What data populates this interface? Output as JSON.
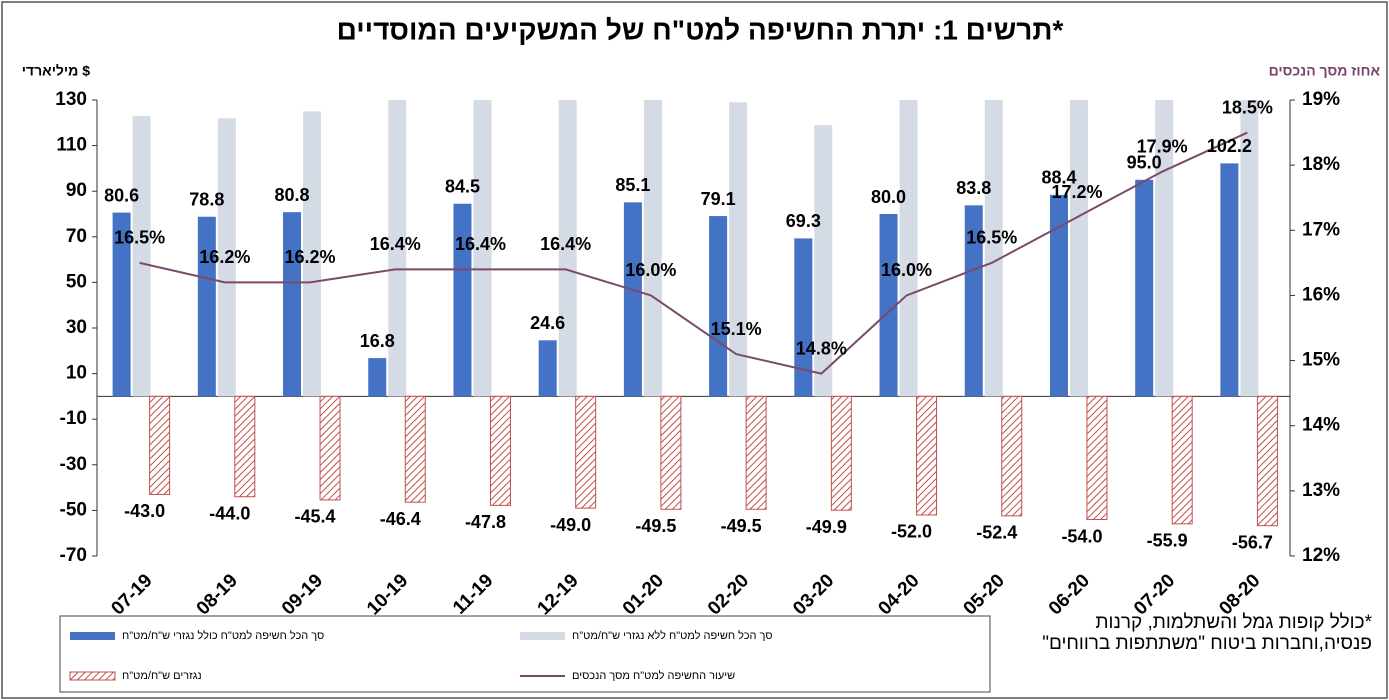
{
  "chart_data": {
    "type": "bar-line",
    "title": "תרשים 1: יתרת החשיפה למט\"ח של המשקיעים המוסדיים*",
    "y_label": "מיליארדי $",
    "y2_label": "אחוז מסך הנכסים",
    "footnote": "*כולל קופות גמל והשתלמות, קרנות פנסיה,וחברות ביטוח \"משתתפות ברווחים\"",
    "categories": [
      "07-19",
      "08-19",
      "09-19",
      "10-19",
      "11-19",
      "12-19",
      "01-20",
      "02-20",
      "03-20",
      "04-20",
      "05-20",
      "06-20",
      "07-20",
      "08-20"
    ],
    "ylim": [
      -70,
      130
    ],
    "yticks": [
      -70,
      -50,
      -30,
      -10,
      10,
      30,
      50,
      70,
      90,
      110,
      130
    ],
    "y2lim": [
      12,
      19
    ],
    "y2ticks": [
      {
        "value": 12,
        "label": "12%"
      },
      {
        "value": 13,
        "label": "13%"
      },
      {
        "value": 14,
        "label": "14%"
      },
      {
        "value": 15,
        "label": "15%"
      },
      {
        "value": 16,
        "label": "16%"
      },
      {
        "value": 17,
        "label": "17%"
      },
      {
        "value": 18,
        "label": "18%"
      },
      {
        "value": 19,
        "label": "19%"
      }
    ],
    "grid": false,
    "series": [
      {
        "name": "סך הכל חשיפה למט\"ח כולל נגזרי ש\"ח/מט\"ח",
        "kind": "bar",
        "color": "#4472c4",
        "values": [
          80.6,
          78.8,
          80.8,
          16.8,
          84.5,
          24.6,
          85.1,
          79.1,
          69.3,
          80,
          83.8,
          88.4,
          95,
          102.2
        ],
        "value_labels": [
          "80.6",
          "78.8",
          "80.8",
          "16.8",
          "84.5",
          "24.6",
          "85.1",
          "79.1",
          "69.3",
          "80.0",
          "83.8",
          "88.4",
          "95.0",
          "102.2"
        ]
      },
      {
        "name": "סך הכל חשיפה למט\"ח ללא נגזרי ש\"ח/מט\"ח",
        "kind": "bar",
        "color": "#d5dbe5",
        "values": [
          123,
          122,
          125,
          130,
          130,
          130,
          130,
          129,
          119,
          130,
          130,
          130,
          130,
          130
        ]
      },
      {
        "name": "נגזרים ש\"ח/מט\"ח",
        "kind": "hatched-bar",
        "color": "#c0504d",
        "values": [
          -43,
          -44,
          -45.4,
          -46.4,
          -47.8,
          -49,
          -49.5,
          -49.5,
          -49.9,
          -52,
          -52.4,
          -54,
          -55.9,
          -56.7
        ],
        "value_labels": [
          "-43.0",
          "-44.0",
          "-45.4",
          "-46.4",
          "-47.8",
          "-49.0",
          "-49.5",
          "-49.5",
          "-49.9",
          "-52.0",
          "-52.4",
          "-54.0",
          "-55.9",
          "-56.7"
        ]
      },
      {
        "name": "שיעור החשיפה למט\"ח מסך הנכסים",
        "kind": "line",
        "axis": "y2",
        "color": "#7b4a6b",
        "values": [
          16.5,
          16.2,
          16.2,
          16.4,
          16.4,
          16.4,
          16,
          15.1,
          14.8,
          16,
          16.5,
          17.2,
          17.9,
          18.5
        ],
        "value_labels": [
          "16.5%",
          "16.2%",
          "16.2%",
          "16.4%",
          "16.4%",
          "16.4%",
          "16.0%",
          "15.1%",
          "14.8%",
          "16.0%",
          "16.5%",
          "17.2%",
          "17.9%",
          "18.5%"
        ]
      }
    ]
  }
}
